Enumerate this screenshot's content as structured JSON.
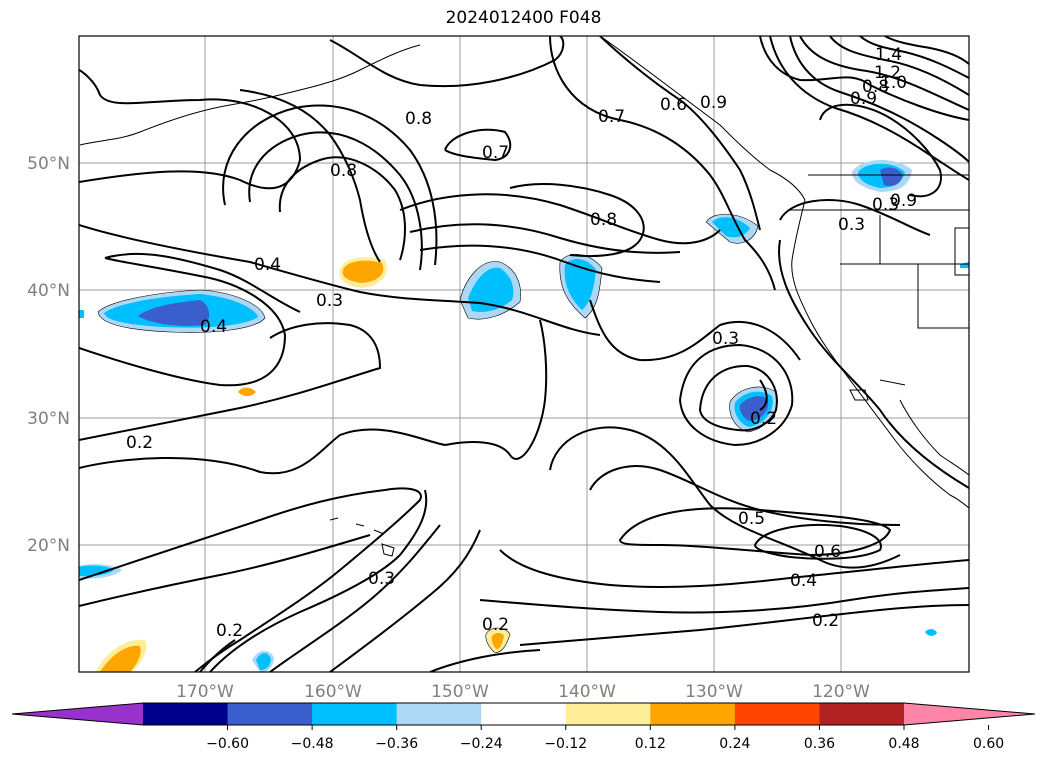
{
  "title": "2024012400 F048",
  "map": {
    "lat_labels": [
      "50°N",
      "40°N",
      "30°N",
      "20°N"
    ],
    "lon_labels": [
      "170°W",
      "160°W",
      "150°W",
      "140°W",
      "130°W",
      "120°W"
    ],
    "contour_labels": [
      "1.4",
      "1.2",
      "1.0",
      "0.8",
      "0.9",
      "0.6",
      "0.9",
      "0.8",
      "0.7",
      "0.7",
      "0.8",
      "0.8",
      "0.4",
      "0.3",
      "0.4",
      "0.2",
      "0.3",
      "0.2",
      "0.3",
      "0.2",
      "0.5",
      "0.6",
      "0.4",
      "0.2",
      "0.2",
      "0.3",
      "0.3",
      "0.9"
    ]
  },
  "colorbar": {
    "tick_labels": [
      "−0.60",
      "−0.48",
      "−0.36",
      "−0.24",
      "−0.12",
      "0.12",
      "0.24",
      "0.36",
      "0.48",
      "0.60"
    ],
    "colors": [
      "#9932cc",
      "#00008b",
      "#3a5fcd",
      "#00bfff",
      "#add8f5",
      "#ffffff",
      "#ffee99",
      "#ffa500",
      "#ff4500",
      "#b22222",
      "#ff85a8"
    ]
  }
}
